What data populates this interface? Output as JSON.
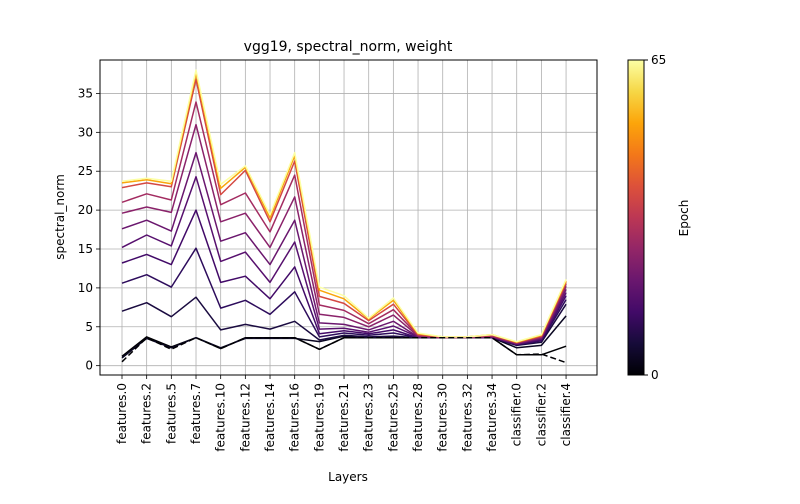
{
  "chart_data": {
    "type": "line",
    "title": "vgg19, spectral_norm, weight",
    "xlabel": "Layers",
    "ylabel": "spectral_norm",
    "categories": [
      "features.0",
      "features.2",
      "features.5",
      "features.7",
      "features.10",
      "features.12",
      "features.14",
      "features.16",
      "features.19",
      "features.21",
      "features.23",
      "features.25",
      "features.28",
      "features.30",
      "features.32",
      "features.34",
      "classifier.0",
      "classifier.2",
      "classifier.4"
    ],
    "ylim": [
      -1.2,
      39.3
    ],
    "yticks": [
      0,
      5,
      10,
      15,
      20,
      25,
      30,
      35
    ],
    "grid": true,
    "colorbar": {
      "label": "Epoch",
      "min": 0,
      "max": 65,
      "tick_labels": [
        "0",
        "65"
      ],
      "colormap": "inferno"
    },
    "series": [
      {
        "epoch": 0,
        "color": "#000004",
        "dashed": true,
        "values": [
          0.5,
          3.6,
          2.1,
          3.6,
          2.2,
          3.6,
          3.6,
          3.6,
          2.1,
          3.6,
          3.6,
          3.6,
          3.6,
          3.6,
          3.6,
          3.6,
          1.4,
          1.5,
          0.4
        ]
      },
      {
        "epoch": 0,
        "color": "#000004",
        "dashed": false,
        "values": [
          1.2,
          3.7,
          2.4,
          3.6,
          2.2,
          3.6,
          3.6,
          3.6,
          2.1,
          3.6,
          3.6,
          3.6,
          3.6,
          3.6,
          3.6,
          3.6,
          1.4,
          1.4,
          2.5
        ]
      },
      {
        "epoch": 2,
        "color": "#0a0722",
        "dashed": false,
        "values": [
          1.0,
          3.5,
          2.3,
          3.6,
          2.3,
          3.5,
          3.5,
          3.5,
          3.1,
          3.8,
          3.6,
          3.7,
          3.6,
          3.6,
          3.6,
          3.6,
          2.3,
          2.6,
          6.4
        ]
      },
      {
        "epoch": 5,
        "color": "#1a0b40",
        "dashed": false,
        "values": [
          7.0,
          8.1,
          6.3,
          8.8,
          4.6,
          5.3,
          4.7,
          5.7,
          3.3,
          3.9,
          3.7,
          3.8,
          3.6,
          3.6,
          3.6,
          3.6,
          2.6,
          3.0,
          7.9
        ]
      },
      {
        "epoch": 10,
        "color": "#2d0c5c",
        "dashed": false,
        "values": [
          10.6,
          11.7,
          10.1,
          15.1,
          7.4,
          8.4,
          6.6,
          9.5,
          3.7,
          4.2,
          3.9,
          4.2,
          3.6,
          3.6,
          3.6,
          3.6,
          2.7,
          3.2,
          8.5
        ]
      },
      {
        "epoch": 15,
        "color": "#420a68",
        "dashed": false,
        "values": [
          13.2,
          14.3,
          13.0,
          20.0,
          10.7,
          11.5,
          8.6,
          12.7,
          4.1,
          4.5,
          4.1,
          4.6,
          3.6,
          3.6,
          3.6,
          3.6,
          2.7,
          3.3,
          9.0
        ]
      },
      {
        "epoch": 20,
        "color": "#57106e",
        "dashed": false,
        "values": [
          15.2,
          16.8,
          15.4,
          24.3,
          13.4,
          14.6,
          10.7,
          15.9,
          4.7,
          4.8,
          4.3,
          5.1,
          3.7,
          3.6,
          3.6,
          3.7,
          2.8,
          3.4,
          9.4
        ]
      },
      {
        "epoch": 26,
        "color": "#6a176e",
        "dashed": false,
        "values": [
          17.6,
          18.7,
          17.3,
          27.4,
          16.0,
          17.1,
          13.0,
          18.7,
          5.5,
          5.3,
          4.6,
          5.7,
          3.7,
          3.6,
          3.6,
          3.7,
          2.8,
          3.5,
          9.8
        ]
      },
      {
        "epoch": 32,
        "color": "#8a226a",
        "dashed": false,
        "values": [
          19.6,
          20.4,
          19.7,
          31.0,
          18.5,
          19.6,
          15.2,
          21.7,
          6.6,
          6.2,
          5.0,
          6.5,
          3.8,
          3.6,
          3.6,
          3.8,
          2.9,
          3.6,
          10.2
        ]
      },
      {
        "epoch": 38,
        "color": "#a32c61",
        "dashed": false,
        "values": [
          21.0,
          22.1,
          21.3,
          33.9,
          20.7,
          22.2,
          17.2,
          24.5,
          7.8,
          7.1,
          5.4,
          7.2,
          3.9,
          3.6,
          3.7,
          3.8,
          2.9,
          3.7,
          10.5
        ]
      },
      {
        "epoch": 45,
        "color": "#d44842",
        "dashed": false,
        "values": [
          22.9,
          23.5,
          23.0,
          36.8,
          22.0,
          25.1,
          18.5,
          26.3,
          8.9,
          8.0,
          5.8,
          7.9,
          4.0,
          3.7,
          3.7,
          3.9,
          3.0,
          3.8,
          10.7
        ]
      },
      {
        "epoch": 55,
        "color": "#f9a60b",
        "dashed": false,
        "values": [
          23.5,
          23.9,
          23.4,
          37.6,
          22.8,
          25.5,
          19.0,
          27.0,
          9.7,
          8.6,
          6.0,
          8.4,
          4.1,
          3.7,
          3.7,
          4.0,
          3.0,
          3.9,
          10.9
        ]
      },
      {
        "epoch": 65,
        "color": "#fcffa4",
        "dashed": false,
        "values": [
          23.7,
          24.1,
          23.7,
          38.0,
          23.3,
          25.7,
          19.4,
          27.4,
          10.1,
          9.0,
          6.1,
          8.7,
          4.2,
          3.7,
          3.7,
          4.0,
          3.1,
          4.0,
          11.1
        ]
      }
    ]
  }
}
